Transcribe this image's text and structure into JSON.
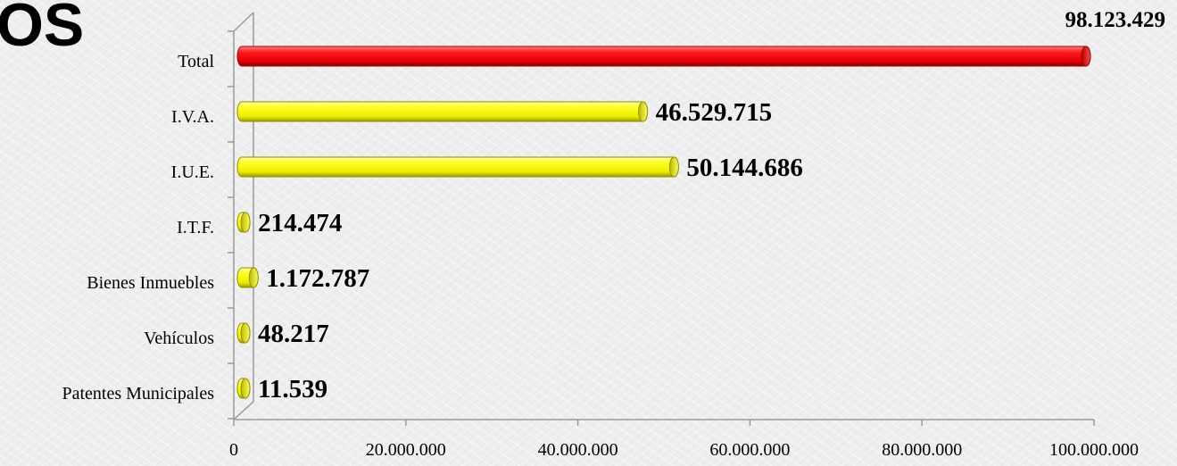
{
  "page": {
    "heading": "OS"
  },
  "chart_data": {
    "type": "bar",
    "orientation": "horizontal",
    "style": "3d-cylinder",
    "categories": [
      "Total",
      "I.V.A.",
      "I.U.E.",
      "I.T.F.",
      "Bienes Inmuebles",
      "Vehículos",
      "Patentes Municipales"
    ],
    "values": [
      98123429,
      46529715,
      50144686,
      214474,
      1172787,
      48217,
      11539
    ],
    "value_labels": [
      "98.123.429",
      "46.529.715",
      "50.144.686",
      "214.474",
      "1.172.787",
      "48.217",
      "11.539"
    ],
    "bar_colors": [
      "#ff0000",
      "#ffff00",
      "#ffff00",
      "#ffff00",
      "#ffff00",
      "#ffff00",
      "#ffff00"
    ],
    "xlim": [
      0,
      100000000
    ],
    "xticks": [
      0,
      20000000,
      40000000,
      60000000,
      80000000,
      100000000
    ],
    "xtick_labels": [
      "0",
      "20.000.000",
      "40.000.000",
      "60.000.000",
      "80.000.000",
      "100.000.000"
    ],
    "grid": false,
    "legend": "none"
  }
}
